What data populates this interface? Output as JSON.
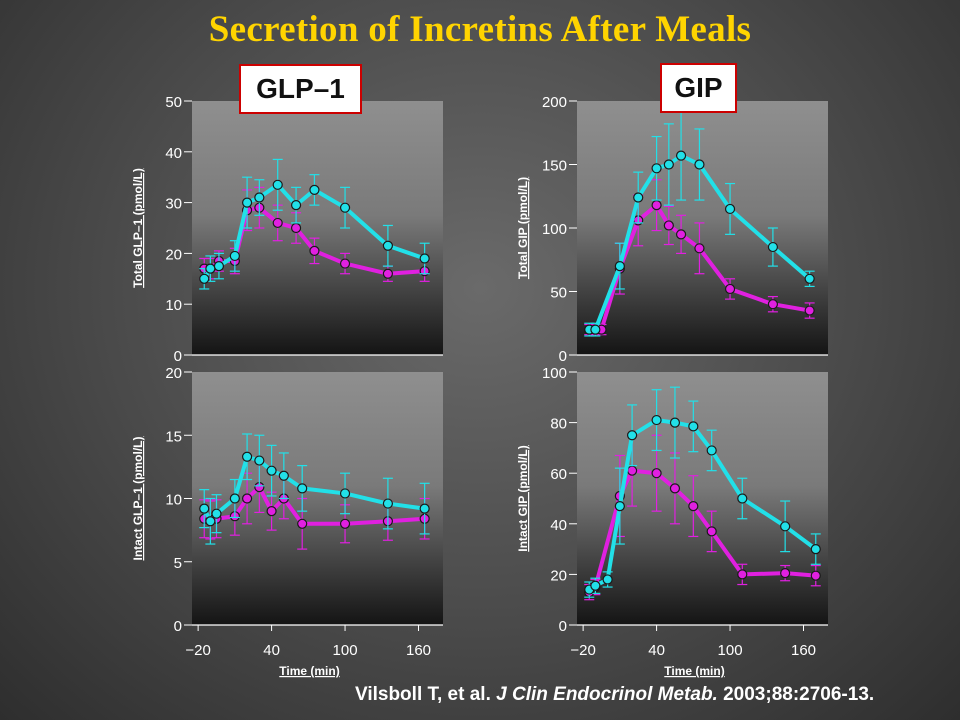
{
  "slide": {
    "title": "Secretion of Incretins After Meals",
    "tag_glp1": "GLP–1",
    "tag_gip": "GIP",
    "citation_authors": "Vilsboll T, et al.",
    "citation_journal": "J Clin Endocrinol Metab.",
    "citation_ref": "2003;88:2706-13."
  },
  "colors": {
    "title": "#ffd400",
    "series_cyan": "#22e0e8",
    "series_magenta": "#e020e0",
    "axis_text": "#ffffff"
  },
  "chart_data": [
    {
      "type": "line",
      "title": "",
      "ylabel": "Total GLP–1 (pmol/L)",
      "xlabel": "",
      "xlim": [
        -25,
        180
      ],
      "ylim": [
        0,
        50
      ],
      "yticks": [
        0,
        10,
        20,
        30,
        40,
        50
      ],
      "xticks": [],
      "series": [
        {
          "color": "cyan",
          "x": [
            -15,
            -10,
            -3,
            10,
            20,
            30,
            45,
            60,
            75,
            100,
            135,
            165
          ],
          "y": [
            15,
            17,
            17.5,
            19.5,
            30,
            31,
            33.5,
            29.5,
            32.5,
            29,
            21.5,
            19
          ],
          "err": [
            2,
            2.5,
            2.5,
            3,
            5,
            3.5,
            5,
            3.5,
            3,
            4,
            4,
            3
          ]
        },
        {
          "color": "magenta",
          "x": [
            -15,
            -10,
            -3,
            10,
            20,
            30,
            45,
            60,
            75,
            100,
            135,
            165
          ],
          "y": [
            17,
            17,
            18.5,
            18.5,
            28.5,
            29,
            26,
            25,
            20.5,
            18,
            16,
            16.5
          ],
          "err": [
            2,
            2,
            2,
            2.5,
            4,
            4,
            3.5,
            3,
            2.5,
            2,
            1.5,
            2
          ]
        }
      ]
    },
    {
      "type": "line",
      "title": "",
      "ylabel": "Total GIP (pmol/L)",
      "xlabel": "",
      "xlim": [
        -25,
        180
      ],
      "ylim": [
        0,
        200
      ],
      "yticks": [
        0,
        50,
        100,
        150,
        200
      ],
      "xticks": [],
      "series": [
        {
          "color": "cyan",
          "x": [
            -15,
            -10,
            10,
            25,
            40,
            50,
            60,
            75,
            100,
            135,
            165
          ],
          "y": [
            20,
            20,
            70,
            124,
            147,
            150,
            157,
            150,
            115,
            85,
            60
          ],
          "err": [
            5,
            5,
            18,
            20,
            25,
            32,
            35,
            28,
            20,
            15,
            6
          ]
        },
        {
          "color": "magenta",
          "x": [
            -15,
            -10,
            -5,
            10,
            25,
            40,
            50,
            60,
            75,
            100,
            135,
            165
          ],
          "y": [
            20,
            20,
            20,
            68,
            106,
            118,
            102,
            95,
            84,
            52,
            40,
            35
          ],
          "err": [
            4,
            4,
            4,
            20,
            20,
            20,
            15,
            15,
            20,
            8,
            6,
            6
          ]
        }
      ]
    },
    {
      "type": "line",
      "title": "",
      "ylabel": "Intact GLP–1 (pmol/L)",
      "xlabel": "Time (min)",
      "xlim": [
        -25,
        180
      ],
      "ylim": [
        0,
        20
      ],
      "yticks": [
        0,
        5,
        10,
        15,
        20
      ],
      "xticks": [
        -20,
        40,
        100,
        160
      ],
      "series": [
        {
          "color": "cyan",
          "x": [
            -15,
            -10,
            -5,
            10,
            20,
            30,
            40,
            50,
            65,
            100,
            135,
            165
          ],
          "y": [
            9.2,
            8.2,
            8.8,
            10,
            13.3,
            13,
            12.2,
            11.8,
            10.8,
            10.4,
            9.6,
            9.2
          ],
          "err": [
            1.5,
            1.8,
            1.5,
            1.5,
            1.8,
            2,
            2,
            1.8,
            1.8,
            1.6,
            2,
            2
          ]
        },
        {
          "color": "magenta",
          "x": [
            -15,
            -10,
            -5,
            10,
            20,
            30,
            40,
            50,
            65,
            100,
            135,
            165
          ],
          "y": [
            8.4,
            8.3,
            8.4,
            8.6,
            10,
            10.9,
            9,
            10,
            8,
            8,
            8.2,
            8.4
          ],
          "err": [
            1.5,
            1.5,
            1.5,
            1.5,
            2,
            2,
            1.5,
            1.6,
            2,
            1.5,
            1.5,
            1.6
          ]
        }
      ]
    },
    {
      "type": "line",
      "title": "",
      "ylabel": "Intact GIP (pmol/L)",
      "xlabel": "Time (min)",
      "xlim": [
        -25,
        180
      ],
      "ylim": [
        0,
        100
      ],
      "yticks": [
        0,
        20,
        40,
        60,
        80,
        100
      ],
      "xticks": [
        -20,
        40,
        100,
        160
      ],
      "series": [
        {
          "color": "cyan",
          "x": [
            -15,
            -10,
            0,
            10,
            20,
            40,
            55,
            70,
            85,
            110,
            145,
            170
          ],
          "y": [
            14,
            15.5,
            18,
            47,
            75,
            81,
            80,
            78.5,
            69,
            50,
            39,
            30
          ],
          "err": [
            3,
            3,
            3,
            15,
            12,
            12,
            14,
            10,
            8,
            8,
            10,
            6
          ]
        },
        {
          "color": "magenta",
          "x": [
            -15,
            -10,
            10,
            20,
            40,
            55,
            70,
            85,
            110,
            145,
            170
          ],
          "y": [
            13,
            15,
            51,
            61,
            60,
            54,
            47,
            37,
            20,
            20.5,
            19.5
          ],
          "err": [
            3,
            3,
            16,
            14,
            15,
            14,
            12,
            8,
            4,
            3,
            4
          ]
        }
      ]
    }
  ]
}
